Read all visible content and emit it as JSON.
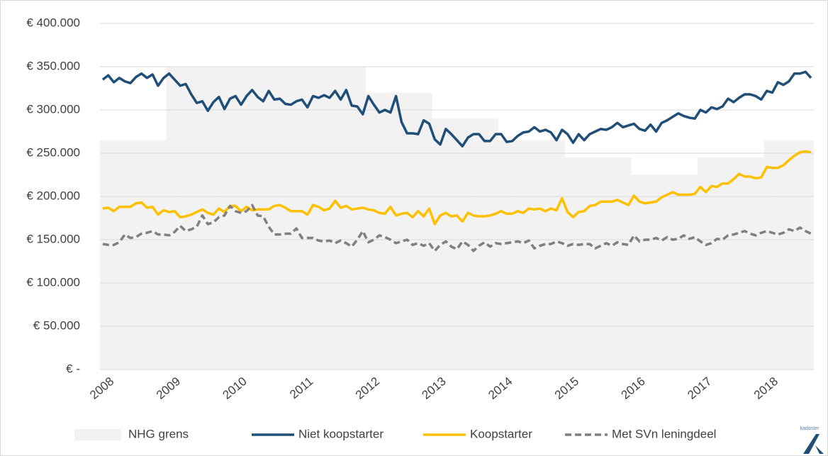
{
  "chart_data": {
    "type": "line",
    "categories": [
      "2008",
      null,
      null,
      null,
      null,
      null,
      null,
      null,
      null,
      null,
      null,
      null,
      "2009",
      null,
      null,
      null,
      null,
      null,
      null,
      null,
      null,
      null,
      null,
      null,
      "2010",
      null,
      null,
      null,
      null,
      null,
      null,
      null,
      null,
      null,
      null,
      null,
      "2011",
      null,
      null,
      null,
      null,
      null,
      null,
      null,
      null,
      null,
      null,
      null,
      "2012",
      null,
      null,
      null,
      null,
      null,
      null,
      null,
      null,
      null,
      null,
      null,
      "2013",
      null,
      null,
      null,
      null,
      null,
      null,
      null,
      null,
      null,
      null,
      null,
      "2014",
      null,
      null,
      null,
      null,
      null,
      null,
      null,
      null,
      null,
      null,
      null,
      "2015",
      null,
      null,
      null,
      null,
      null,
      null,
      null,
      null,
      null,
      null,
      null,
      "2016",
      null,
      null,
      null,
      null,
      null,
      null,
      null,
      null,
      null,
      null,
      null,
      "2017",
      null,
      null,
      null,
      null,
      null,
      null,
      null,
      null,
      null,
      null,
      null,
      "2018",
      null,
      null,
      null,
      null,
      null,
      null,
      null,
      null
    ],
    "series": [
      {
        "name": "NHG grens",
        "style": "area",
        "color": "#f2f2f2",
        "values": [
          265000,
          265000,
          265000,
          265000,
          265000,
          265000,
          265000,
          265000,
          265000,
          265000,
          265000,
          265000,
          350000,
          350000,
          350000,
          350000,
          350000,
          350000,
          350000,
          350000,
          350000,
          350000,
          350000,
          350000,
          350000,
          350000,
          350000,
          350000,
          350000,
          350000,
          350000,
          350000,
          350000,
          350000,
          350000,
          350000,
          350000,
          350000,
          350000,
          350000,
          350000,
          350000,
          350000,
          350000,
          350000,
          350000,
          350000,
          350000,
          320000,
          320000,
          320000,
          320000,
          320000,
          320000,
          320000,
          320000,
          320000,
          320000,
          320000,
          320000,
          290000,
          290000,
          290000,
          290000,
          290000,
          290000,
          290000,
          290000,
          290000,
          290000,
          290000,
          290000,
          265000,
          265000,
          265000,
          265000,
          265000,
          265000,
          265000,
          265000,
          265000,
          265000,
          265000,
          265000,
          245000,
          245000,
          245000,
          245000,
          245000,
          245000,
          245000,
          245000,
          245000,
          245000,
          245000,
          245000,
          225000,
          225000,
          225000,
          225000,
          225000,
          225000,
          225000,
          225000,
          225000,
          225000,
          225000,
          225000,
          245000,
          245000,
          245000,
          245000,
          245000,
          245000,
          245000,
          245000,
          245000,
          245000,
          245000,
          245000,
          265000,
          265000,
          265000,
          265000,
          265000,
          265000,
          265000,
          265000,
          265000
        ]
      },
      {
        "name": "Niet koopstarter",
        "style": "solid",
        "color": "#1f4e79",
        "values": [
          335000,
          340000,
          332000,
          337000,
          333000,
          331000,
          338000,
          342000,
          337000,
          341000,
          328000,
          337000,
          342000,
          335000,
          328000,
          330000,
          318000,
          308000,
          310000,
          299000,
          309000,
          315000,
          301000,
          313000,
          316000,
          306000,
          316000,
          323000,
          315000,
          310000,
          322000,
          312000,
          313000,
          307000,
          306000,
          310000,
          312000,
          303000,
          316000,
          314000,
          317000,
          314000,
          322000,
          312000,
          323000,
          305000,
          304000,
          295000,
          316000,
          306000,
          297000,
          300000,
          297000,
          316000,
          286000,
          273000,
          273000,
          272000,
          288000,
          284000,
          266000,
          260000,
          278000,
          272000,
          265000,
          258000,
          268000,
          272000,
          272000,
          264000,
          264000,
          272000,
          272000,
          263000,
          264000,
          270000,
          274000,
          275000,
          280000,
          275000,
          277000,
          274000,
          265000,
          277000,
          272000,
          262000,
          272000,
          265000,
          272000,
          275000,
          278000,
          277000,
          280000,
          285000,
          280000,
          282000,
          284000,
          278000,
          276000,
          283000,
          275000,
          285000,
          288000,
          292000,
          296000,
          293000,
          291000,
          290000,
          300000,
          297000,
          303000,
          301000,
          304000,
          313000,
          309000,
          314000,
          318000,
          318000,
          316000,
          312000,
          322000,
          320000,
          332000,
          329000,
          333000,
          342000,
          342000,
          344000,
          337000
        ]
      },
      {
        "name": "Koopstarter",
        "style": "solid",
        "color": "#ffc000",
        "values": [
          186000,
          187000,
          183000,
          188000,
          188000,
          188000,
          192000,
          193000,
          187000,
          188000,
          179000,
          184000,
          182000,
          183000,
          176000,
          177000,
          179000,
          182000,
          185000,
          181000,
          179000,
          186000,
          182000,
          189000,
          189000,
          183000,
          188000,
          184000,
          185000,
          185000,
          185000,
          189000,
          190000,
          187000,
          183000,
          183000,
          183000,
          179000,
          190000,
          188000,
          184000,
          186000,
          195000,
          187000,
          189000,
          185000,
          186000,
          187000,
          185000,
          184000,
          181000,
          180000,
          188000,
          178000,
          180000,
          181000,
          176000,
          183000,
          177000,
          186000,
          168000,
          178000,
          181000,
          177000,
          178000,
          171000,
          181000,
          178000,
          177000,
          177000,
          178000,
          180000,
          183000,
          180000,
          180000,
          183000,
          181000,
          186000,
          185000,
          186000,
          183000,
          186000,
          184000,
          198000,
          182000,
          176000,
          182000,
          183000,
          189000,
          190000,
          194000,
          194000,
          194000,
          196000,
          193000,
          190000,
          201000,
          194000,
          192000,
          193000,
          194000,
          199000,
          202000,
          205000,
          202000,
          202000,
          202000,
          203000,
          211000,
          205000,
          212000,
          211000,
          215000,
          215000,
          220000,
          226000,
          223000,
          223000,
          221000,
          222000,
          234000,
          233000,
          233000,
          236000,
          242000,
          247000,
          251000,
          252000,
          251000
        ]
      },
      {
        "name": "Met SVn leningdeel",
        "style": "dashed",
        "color": "#7f7f7f",
        "values": [
          145000,
          144000,
          144000,
          147000,
          156000,
          152000,
          153000,
          157000,
          158000,
          160000,
          156000,
          156000,
          155000,
          159000,
          166000,
          160000,
          162000,
          165000,
          178000,
          168000,
          170000,
          176000,
          178000,
          189000,
          183000,
          181000,
          183000,
          190000,
          178000,
          177000,
          165000,
          156000,
          156000,
          157000,
          157000,
          163000,
          152000,
          152000,
          152000,
          149000,
          148000,
          149000,
          146000,
          149000,
          146000,
          142000,
          150000,
          160000,
          147000,
          150000,
          155000,
          153000,
          150000,
          146000,
          148000,
          150000,
          144000,
          146000,
          143000,
          146000,
          137000,
          144000,
          148000,
          142000,
          139000,
          148000,
          144000,
          137000,
          143000,
          147000,
          142000,
          146000,
          145000,
          146000,
          147000,
          148000,
          146000,
          149000,
          140000,
          143000,
          145000,
          145000,
          148000,
          146000,
          143000,
          145000,
          144000,
          145000,
          145000,
          140000,
          143000,
          146000,
          143000,
          147000,
          145000,
          144000,
          155000,
          148000,
          150000,
          150000,
          152000,
          149000,
          153000,
          150000,
          151000,
          155000,
          151000,
          153000,
          148000,
          144000,
          146000,
          151000,
          150000,
          155000,
          156000,
          158000,
          160000,
          157000,
          155000,
          158000,
          160000,
          158000,
          156000,
          158000,
          162000,
          160000,
          164000,
          160000,
          157000
        ]
      }
    ],
    "ylim": [
      0,
      400000
    ],
    "yticks": [
      {
        "value": 0,
        "label": "€ -"
      },
      {
        "value": 50000,
        "label": "€ 50.000"
      },
      {
        "value": 100000,
        "label": "€ 100.000"
      },
      {
        "value": 150000,
        "label": "€ 150.000"
      },
      {
        "value": 200000,
        "label": "€ 200.000"
      },
      {
        "value": 250000,
        "label": "€ 250.000"
      },
      {
        "value": 300000,
        "label": "€ 300.000"
      },
      {
        "value": 350000,
        "label": "€ 350.000"
      },
      {
        "value": 400000,
        "label": "€ 400.000"
      }
    ],
    "grid": true,
    "legend": "bottom",
    "source": "kadaster"
  }
}
